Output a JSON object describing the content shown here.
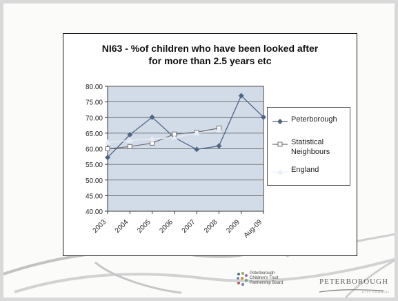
{
  "chart_data": {
    "type": "line",
    "title": "NI63 - %of children who have been looked after\nfor more than 2.5 years etc",
    "categories": [
      "2003",
      "2004",
      "2005",
      "2006",
      "2007",
      "2008",
      "2009",
      "Aug-09"
    ],
    "series": [
      {
        "name": "Peterborough",
        "values": [
          57.2,
          64.5,
          70.1,
          63.6,
          59.8,
          60.9,
          77.0,
          70.1
        ]
      },
      {
        "name": "Statistical Neighbours",
        "values": [
          60.0,
          60.7,
          61.8,
          64.7,
          65.3,
          66.6,
          null,
          null
        ]
      },
      {
        "name": "England",
        "values": [
          62.0,
          62.7,
          63.2,
          63.6,
          65.0,
          65.9,
          null,
          null
        ]
      }
    ],
    "y_ticks": [
      "80.00",
      "75.00",
      "70.00",
      "65.00",
      "60.00",
      "55.00",
      "50.00",
      "45.00",
      "40.00"
    ],
    "ylim": [
      40,
      80
    ],
    "grid": true,
    "legend_position": "right",
    "colors": {
      "plot_bg": "#d2dbe8",
      "peterborough": "#4f6584",
      "statistical_neighbours": "#6f6f6f",
      "england": "#e9edf5"
    }
  },
  "footer": {
    "trust_logo_text": "Peterborough\nChildren's Trust\nPartnership Board",
    "council_logo_text": "PETERBOROUGH",
    "council_sub_text": "CITY COUNCIL"
  }
}
